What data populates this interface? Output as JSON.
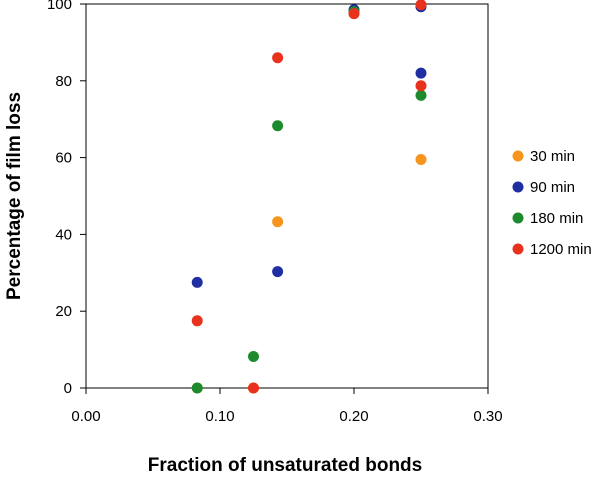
{
  "chart_data": {
    "type": "scatter",
    "title": "",
    "xlabel": "Fraction of unsaturated bonds",
    "ylabel": "Percentage of film loss",
    "xlim": [
      0,
      0.3
    ],
    "ylim": [
      0,
      100
    ],
    "x_ticks": [
      "0.00",
      "0.10",
      "0.20",
      "0.30"
    ],
    "y_ticks": [
      "0",
      "20",
      "40",
      "60",
      "80",
      "100"
    ],
    "grid": false,
    "legend_position": "right",
    "series": [
      {
        "name": "30 min",
        "color": "#f7941d",
        "points": [
          [
            0.083,
            0
          ],
          [
            0.125,
            0
          ],
          [
            0.143,
            43.3
          ],
          [
            0.2,
            97.5
          ],
          [
            0.25,
            59.5
          ]
        ]
      },
      {
        "name": "90 min",
        "color": "#1f2fa3",
        "points": [
          [
            0.083,
            27.5
          ],
          [
            0.143,
            30.3
          ],
          [
            0.2,
            98.5
          ],
          [
            0.25,
            99.3
          ],
          [
            0.25,
            82
          ]
        ]
      },
      {
        "name": "180 min",
        "color": "#1e8a2e",
        "points": [
          [
            0.083,
            0
          ],
          [
            0.125,
            8.2
          ],
          [
            0.143,
            68.3
          ],
          [
            0.2,
            98
          ],
          [
            0.25,
            76.2
          ]
        ]
      },
      {
        "name": "1200 min",
        "color": "#e8321e",
        "points": [
          [
            0.083,
            17.5
          ],
          [
            0.125,
            0
          ],
          [
            0.143,
            86
          ],
          [
            0.2,
            97.5
          ],
          [
            0.25,
            99.8
          ],
          [
            0.25,
            78.7
          ]
        ]
      }
    ]
  }
}
